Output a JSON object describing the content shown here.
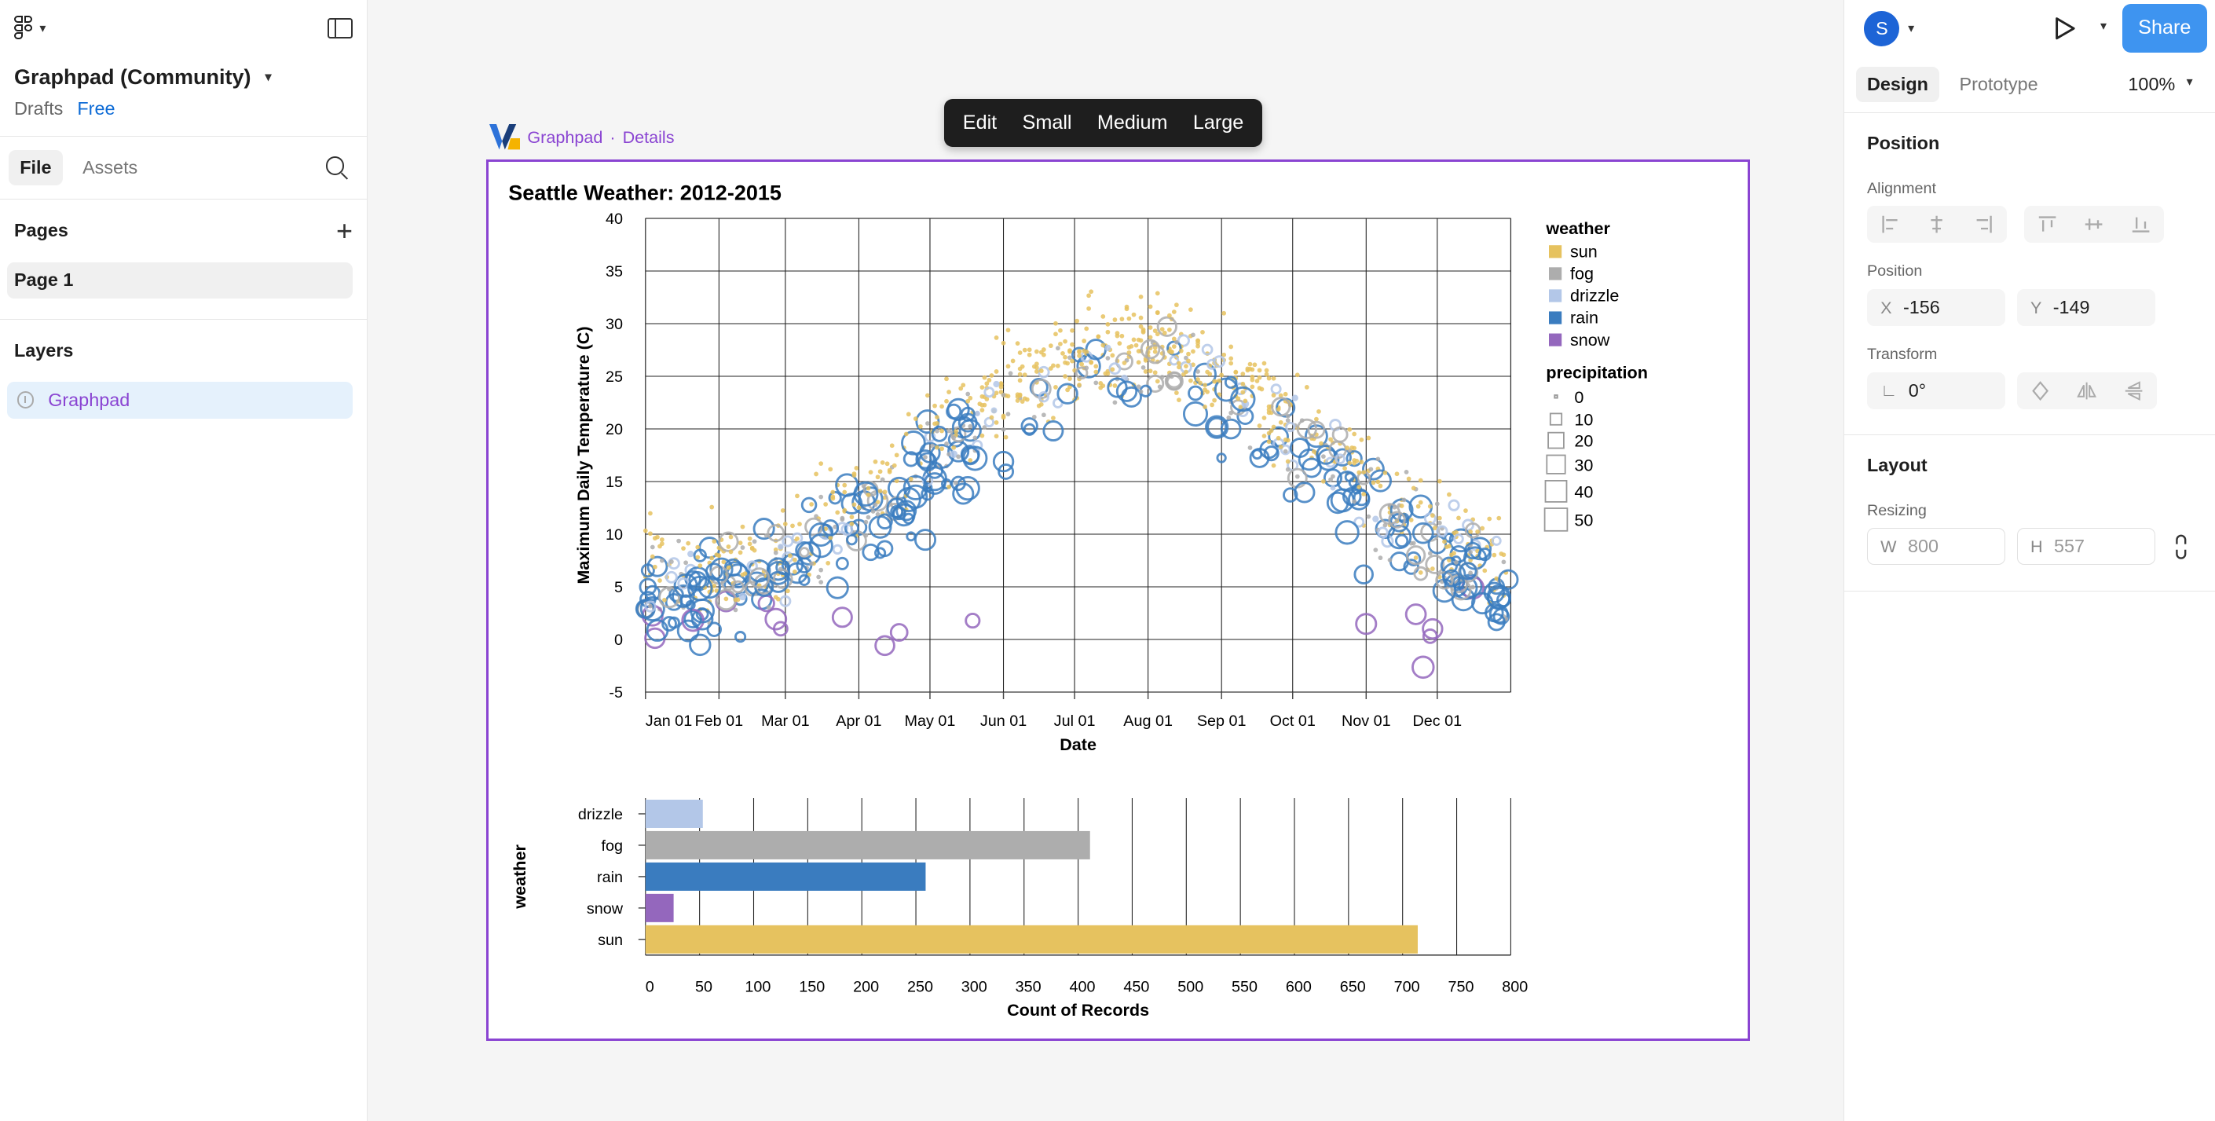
{
  "left_panel": {
    "file_name": "Graphpad (Community)",
    "drafts_label": "Drafts",
    "plan_badge": "Free",
    "tabs": [
      "File",
      "Assets"
    ],
    "pages_heading": "Pages",
    "pages": [
      "Page 1"
    ],
    "layers_heading": "Layers",
    "layers": [
      "Graphpad"
    ]
  },
  "right_panel": {
    "avatar_initial": "S",
    "share_label": "Share",
    "tabs": [
      "Design",
      "Prototype"
    ],
    "zoom_level": "100%",
    "position": {
      "heading": "Position",
      "alignment_label": "Alignment",
      "position_label": "Position",
      "x_key": "X",
      "x": "-156",
      "y_key": "Y",
      "y": "-149",
      "transform_label": "Transform",
      "rotation": "0°"
    },
    "layout": {
      "heading": "Layout",
      "resizing_label": "Resizing",
      "w_key": "W",
      "w": "800",
      "h_key": "H",
      "h": "557"
    }
  },
  "canvas_toolbar": [
    "Edit",
    "Small",
    "Medium",
    "Large"
  ],
  "frame_label": {
    "name": "Graphpad",
    "separator": "·",
    "details": "Details"
  },
  "colors": {
    "sun": "#e6c25f",
    "fog": "#adadad",
    "drizzle": "#b3c7e8",
    "rain": "#3a7cbf",
    "snow": "#9467bd",
    "accent": "#8a44d2",
    "share": "#3e94f0"
  },
  "chart_data": [
    {
      "type": "scatter",
      "title": "Seattle Weather: 2012-2015",
      "xlabel": "Date",
      "ylabel": "Maximum Daily Temperature (C)",
      "x_ticks": [
        "Jan 01",
        "Feb 01",
        "Mar 01",
        "Apr 01",
        "May 01",
        "Jun 01",
        "Jul 01",
        "Aug 01",
        "Sep 01",
        "Oct 01",
        "Nov 01",
        "Dec 01"
      ],
      "ylim": [
        -5,
        40
      ],
      "y_ticks": [
        -5,
        0,
        5,
        10,
        15,
        20,
        25,
        30,
        35,
        40
      ],
      "grid": true,
      "legend_weather_title": "weather",
      "legend_weather": [
        "sun",
        "fog",
        "drizzle",
        "rain",
        "snow"
      ],
      "legend_size_title": "precipitation",
      "legend_size": [
        "0",
        "10",
        "20",
        "30",
        "40",
        "50"
      ],
      "legend_placement": "right",
      "note": ""
    },
    {
      "type": "bar",
      "orientation": "horizontal",
      "ylabel": "weather",
      "xlabel": "Count of Records",
      "categories": [
        "drizzle",
        "fog",
        "rain",
        "snow",
        "sun"
      ],
      "values": [
        53,
        411,
        259,
        26,
        714
      ],
      "xlim": [
        0,
        800
      ],
      "x_ticks": [
        0,
        50,
        100,
        150,
        200,
        250,
        300,
        350,
        400,
        450,
        500,
        550,
        600,
        650,
        700,
        750,
        800
      ],
      "grid": true
    }
  ]
}
